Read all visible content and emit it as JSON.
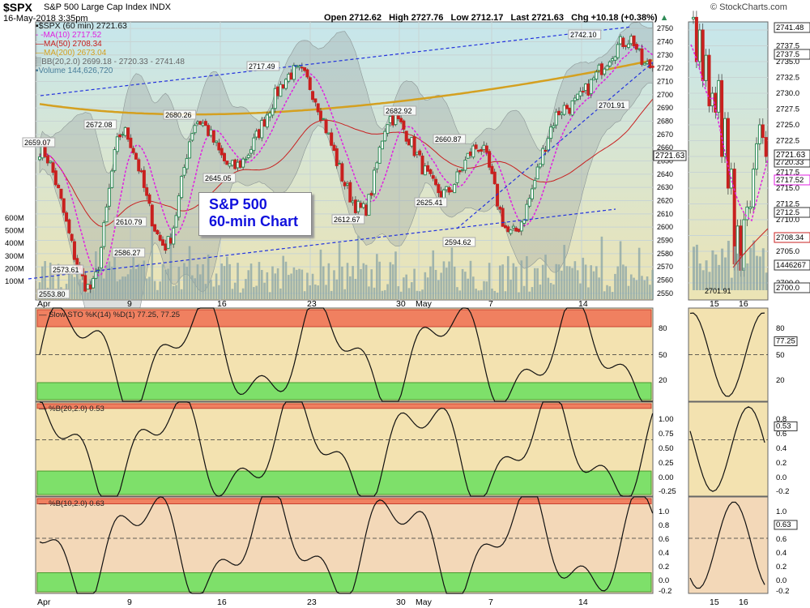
{
  "header": {
    "symbol": "$SPX",
    "name": "S&P 500 Large Cap Index",
    "exchange": "INDX",
    "datetime": "16-May-2018 3:35pm",
    "open": "Open 2712.62",
    "high": "High 2727.76",
    "low": "Low 2712.17",
    "last": "Last 2721.63",
    "chg": "Chg +10.18 (+0.38%)",
    "arrow": "▲",
    "brand": "© StockCharts.com"
  },
  "legend": {
    "price": "$SPX (60 min) 2721.63",
    "ma10": "MA(10) 2717.52",
    "ma50": "MA(50) 2708.34",
    "ma200": "MA(200) 2673.04",
    "bb": "BB(20,2.0) 2699.18 - 2720.33 - 2741.48",
    "volume": "Volume 144,626,720"
  },
  "annotation": {
    "line1": "S&P 500",
    "line2": "60-min Chart"
  },
  "colors": {
    "up": "#2e8b57",
    "down": "#c8201f",
    "ma10": "#e020e0",
    "ma50": "#c82020",
    "ma200": "#d4a020",
    "bb": "#9aa4a4",
    "trend": "#2233dd",
    "volume": "#8fa8a8"
  },
  "chart_data": {
    "type": "candlestick",
    "title": "$SPX S&P 500 Large Cap Index INDX (60 min)",
    "ylim": [
      2545,
      2755
    ],
    "y_ticks": [
      "2750",
      "2740",
      "2730",
      "2720",
      "2710",
      "2700",
      "2690",
      "2680",
      "2670",
      "2660",
      "2650",
      "2640",
      "2630",
      "2620",
      "2610",
      "2600",
      "2590",
      "2580",
      "2570",
      "2560",
      "2550"
    ],
    "vol_ticks": [
      "600M",
      "500M",
      "400M",
      "300M",
      "200M",
      "100M"
    ],
    "x_ticks": [
      "Apr",
      "9",
      "16",
      "23",
      "30",
      "May",
      "7",
      "14"
    ],
    "last_price": "2721.63",
    "right_tags": [
      "2741.48",
      "2737.5",
      "2720.33",
      "2717.52",
      "2712.5",
      "2708.34",
      "1446267",
      "2700.0"
    ],
    "pivot_x": [
      0,
      19,
      31,
      47,
      59,
      72,
      96,
      121,
      131,
      151,
      164,
      176,
      196,
      221,
      226
    ],
    "pivot_y": [
      2659,
      2553.8,
      2672.08,
      2586.27,
      2680.26,
      2645.05,
      2717.49,
      2612.67,
      2682.92,
      2625.41,
      2660.87,
      2594.62,
      2690,
      2742.1,
      2721.63
    ],
    "peak_labels": [
      "2659.07",
      "2553.80",
      "2573.61",
      "2672.08",
      "2586.27",
      "2610.79",
      "2680.26",
      "2645.05",
      "2717.49",
      "2612.67",
      "2682.92",
      "2625.41",
      "2660.87",
      "2594.62",
      "2742.10",
      "2701.91"
    ],
    "moving_averages": [
      {
        "name": "MA(10)",
        "value": "2717.52"
      },
      {
        "name": "MA(50)",
        "value": "2708.34"
      },
      {
        "name": "MA(200)",
        "value": "2673.04"
      }
    ],
    "zoom": {
      "x_ticks": [
        "15",
        "16"
      ],
      "y_ticks": [
        "2740.0",
        "2737.5",
        "2735.0",
        "2732.5",
        "2730.0",
        "2727.5",
        "2725.0",
        "2722.5",
        "2720.0",
        "2717.5",
        "2715.0",
        "2712.5",
        "2710.0",
        "2707.5",
        "2705.0",
        "2702.5",
        "2700.0"
      ],
      "low_label": "2701.91",
      "last_label": "2721.63"
    },
    "panels": [
      {
        "name": "Slow STO %K(14) %D(1)",
        "value": "77.25, 77.25",
        "ticks": [
          "80",
          "50",
          "20"
        ],
        "range": [
          0,
          100
        ],
        "upper_band": 80,
        "lower_band": 20,
        "mid": 50
      },
      {
        "name": "%B(20,2.0)",
        "value": "0.53",
        "ticks": [
          "1.00",
          "0.75",
          "0.50",
          "0.25",
          "0.00",
          "-0.25"
        ],
        "range": [
          -0.4,
          1.1
        ],
        "upper_band": 1.0,
        "lower_band": 0.0,
        "mid": 0.5
      },
      {
        "name": "%B(10,2.0)",
        "value": "0.63",
        "ticks": [
          "1.0",
          "0.8",
          "0.6",
          "0.4",
          "0.2",
          "0.0",
          "-0.2"
        ],
        "range": [
          -0.3,
          1.1
        ],
        "upper_band": 1.0,
        "lower_band": 0.0,
        "mid": 0.5
      }
    ],
    "panel_last": [
      "77.25",
      "0.53",
      "0.63"
    ],
    "zoom_panel_ticks": [
      [
        "80",
        "50",
        "20"
      ],
      [
        "0.8",
        "0.6",
        "0.4",
        "0.2",
        "0.0",
        "-0.2"
      ],
      [
        "1.0",
        "0.8",
        "0.6",
        "0.4",
        "0.2",
        "0.0",
        "-0.2"
      ]
    ]
  }
}
